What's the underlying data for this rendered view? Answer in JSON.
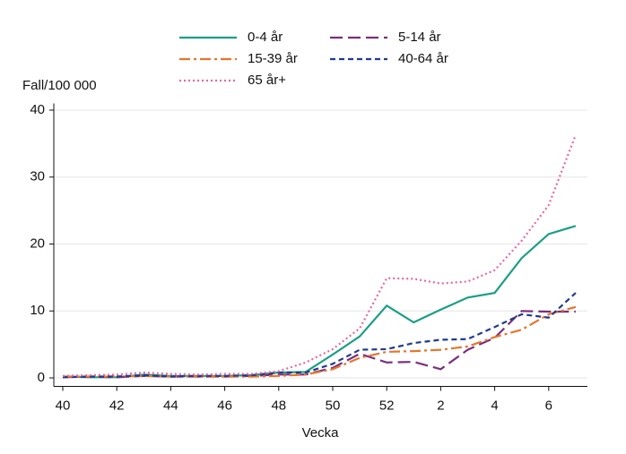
{
  "chart_data": {
    "type": "line",
    "y_label": "Fall/100 000",
    "x_label": "Vecka",
    "categories": [
      "40",
      null,
      "42",
      null,
      "44",
      null,
      "46",
      null,
      "48",
      null,
      "50",
      null,
      "52",
      null,
      "2",
      null,
      "4",
      null,
      "6",
      null
    ],
    "series": [
      {
        "name": "0-4 år",
        "color": "#1a9f85",
        "dash": "solid",
        "values": [
          0.2,
          0.1,
          0.1,
          0.5,
          0.3,
          0.3,
          0.3,
          0.4,
          0.8,
          0.9,
          3.5,
          6.2,
          10.8,
          8.3,
          10.2,
          12,
          12.7,
          17.9,
          21.5,
          22.7
        ]
      },
      {
        "name": "5-14 år",
        "color": "#7b2e7f",
        "dash": "longdash",
        "values": [
          0.1,
          0.2,
          0.1,
          0.3,
          0.2,
          0.2,
          0.2,
          0.3,
          0.5,
          0.5,
          1.5,
          3.6,
          2.3,
          2.4,
          1.3,
          4.2,
          6,
          10,
          9.9,
          9.9
        ]
      },
      {
        "name": "15-39 år",
        "color": "#e8742a",
        "dash": "dashdot",
        "values": [
          0.2,
          0.2,
          0.2,
          0.3,
          0.2,
          0.2,
          0.2,
          0.2,
          0.3,
          0.5,
          1.3,
          3,
          3.9,
          4,
          4.2,
          4.7,
          6.1,
          7.2,
          9.5,
          10.6
        ]
      },
      {
        "name": "40-64 år",
        "color": "#1f3c8c",
        "dash": "shortdash",
        "values": [
          0.1,
          0.2,
          0.2,
          0.4,
          0.2,
          0.3,
          0.3,
          0.4,
          0.8,
          0.8,
          2.1,
          4.2,
          4.3,
          5.2,
          5.7,
          5.8,
          7.6,
          9.5,
          9,
          12.7
        ]
      },
      {
        "name": "65 år+",
        "color": "#e8689e",
        "dash": "dot",
        "values": [
          0.3,
          0.4,
          0.5,
          0.8,
          0.6,
          0.5,
          0.6,
          0.6,
          1.0,
          2.3,
          4.3,
          7.4,
          14.9,
          14.8,
          14.1,
          14.4,
          16.1,
          20.5,
          25.8,
          36.3
        ]
      }
    ],
    "ylim": [
      -1,
      41
    ],
    "yticks": [
      0,
      10,
      20,
      30,
      40
    ],
    "grid": true
  }
}
